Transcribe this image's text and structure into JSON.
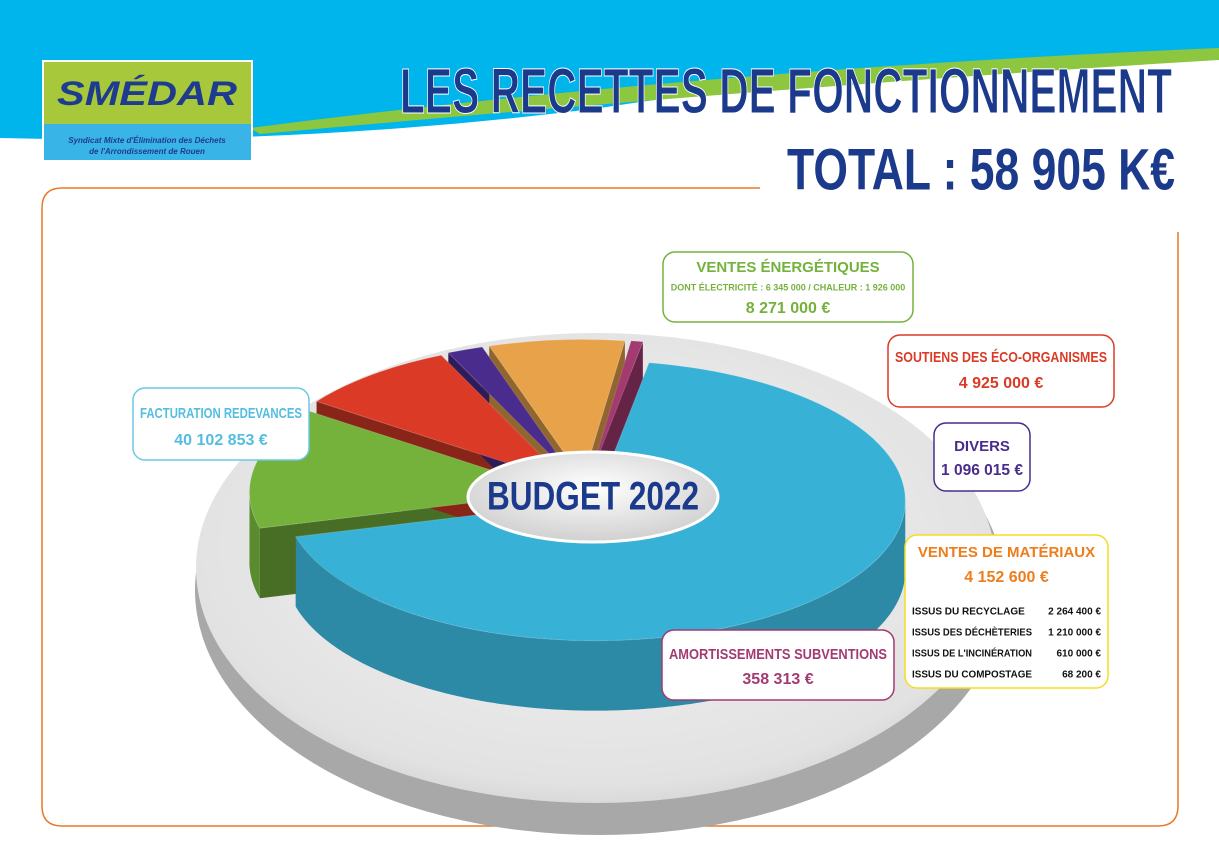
{
  "header": {
    "logo": "SMÉDAR",
    "logo_subtitle": [
      "Syndicat Mixte d'Élimination des Déchets",
      "de l'Arrondissement de Rouen"
    ],
    "title": "LES RECETTES DE FONCTIONNEMENT",
    "total": "TOTAL : 58 905 K€"
  },
  "chart_data": {
    "type": "pie",
    "center_label": "BUDGET 2022",
    "categories": [
      "FACTURATION REDEVANCES",
      "VENTES ÉNERGÉTIQUES",
      "SOUTIENS DES ÉCO-ORGANISMES",
      "DIVERS",
      "VENTES DE MATÉRIAUX",
      "AMORTISSEMENTS SUBVENTIONS"
    ],
    "values": [
      40102853,
      8271000,
      4925000,
      1096015,
      4152600,
      358313
    ],
    "value_labels": [
      "40 102 853 €",
      "8 271 000 €",
      "4 925 000 €",
      "1 096 015 €",
      "4 152 600 €",
      "358 313 €"
    ],
    "colors": [
      "#38b1d6",
      "#74b23c",
      "#db3b26",
      "#4a2c8c",
      "#e8a34a",
      "#a33a70"
    ],
    "energy_detail": "DONT ÉLECTRICITÉ : 6 345 000 / CHALEUR : 1 926 000",
    "materials_breakdown": {
      "rows": [
        [
          "ISSUS DU RECYCLAGE",
          "2 264 400 €"
        ],
        [
          "ISSUS DES DÉCHÈTERIES",
          "1 210 000 €"
        ],
        [
          "ISSUS DE L'INCINÉRATION",
          "610 000 €"
        ],
        [
          "ISSUS DU COMPOSTAGE",
          "68 200 €"
        ]
      ]
    }
  }
}
